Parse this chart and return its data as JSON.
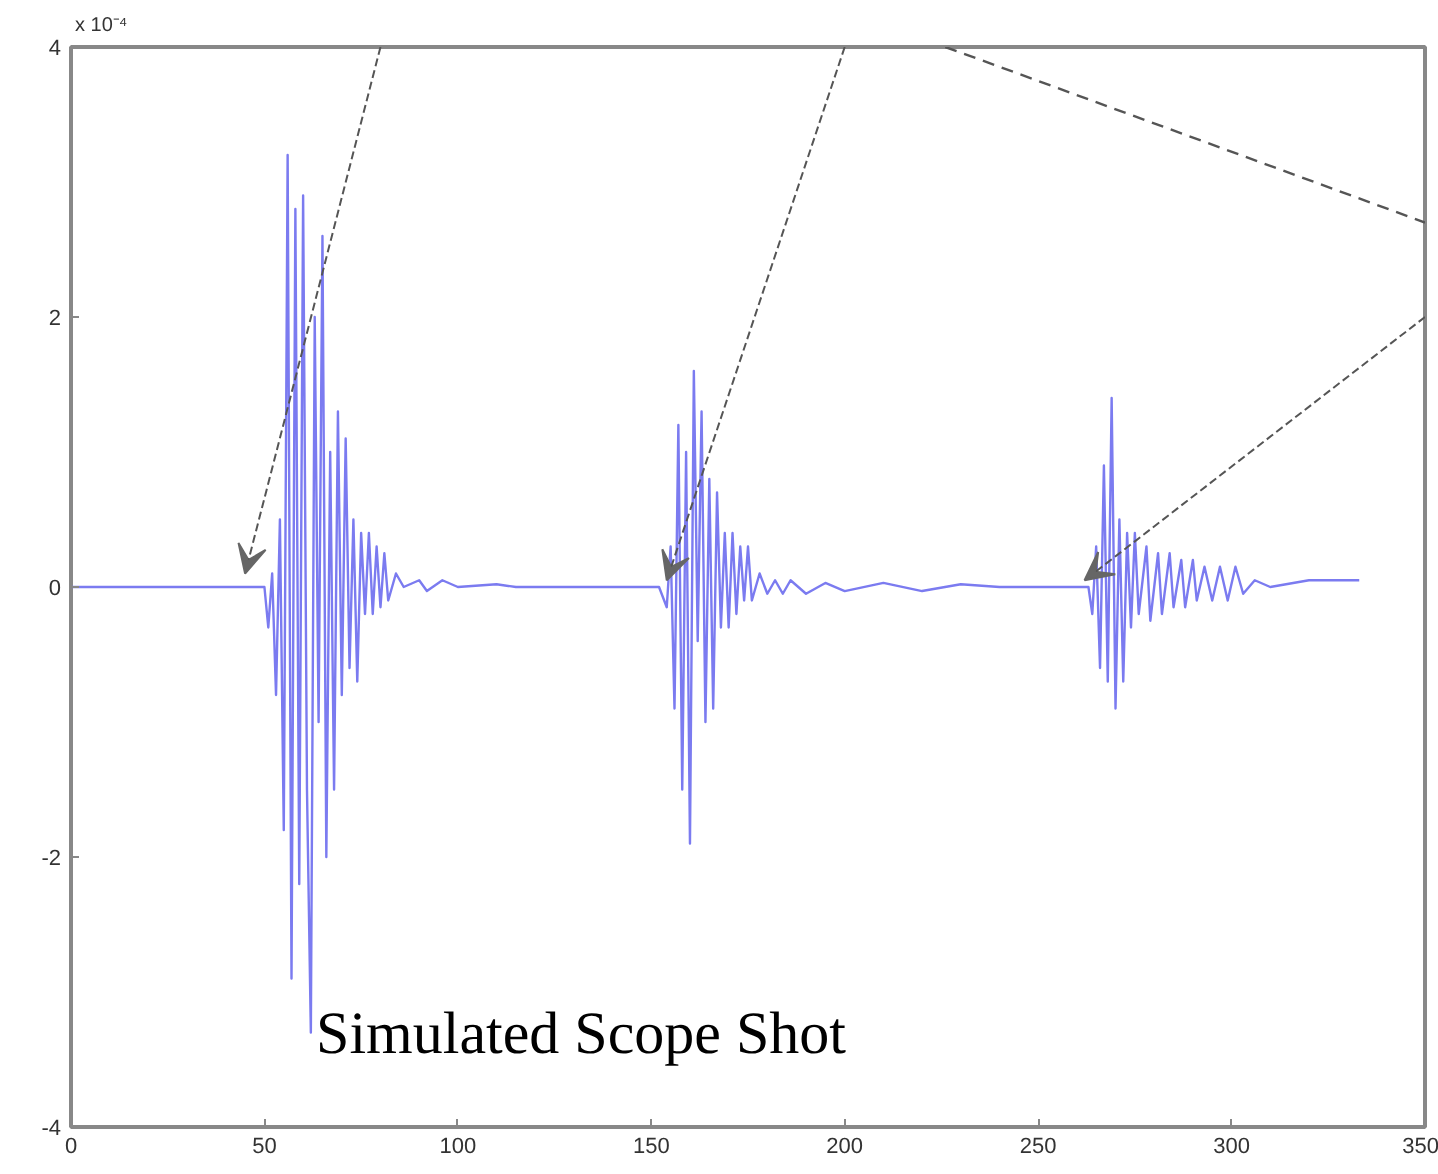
{
  "chart_data": {
    "type": "line",
    "annotations": [
      "x 10⁻⁴",
      "Simulated Scope Shot"
    ],
    "xlim": [
      0,
      350
    ],
    "xticks": [
      0,
      50,
      100,
      150,
      200,
      250,
      300,
      350
    ],
    "ylim": [
      -4,
      4
    ],
    "yticks": [
      -4,
      -2,
      0,
      2,
      4
    ],
    "grid": false,
    "marker": "none",
    "line_style": "solid",
    "series": [
      {
        "color": "#7b7bf0",
        "x": [
          0,
          48,
          50,
          51,
          52,
          53,
          54,
          55,
          56,
          57,
          58,
          59,
          60,
          61,
          62,
          63,
          64,
          65,
          66,
          67,
          68,
          69,
          70,
          71,
          72,
          73,
          74,
          75,
          76,
          77,
          78,
          79,
          80,
          81,
          82,
          84,
          86,
          90,
          92,
          96,
          100,
          110,
          115,
          150,
          152,
          154,
          155,
          156,
          157,
          158,
          159,
          160,
          161,
          162,
          163,
          164,
          165,
          166,
          167,
          168,
          169,
          170,
          171,
          172,
          173,
          174,
          175,
          176,
          178,
          180,
          182,
          184,
          186,
          190,
          195,
          200,
          210,
          220,
          230,
          240,
          260,
          263,
          264,
          265,
          266,
          267,
          268,
          269,
          270,
          271,
          272,
          273,
          274,
          275,
          276,
          278,
          279,
          281,
          282,
          284,
          285,
          287,
          288,
          290,
          291,
          293,
          295,
          297,
          299,
          301,
          303,
          306,
          310,
          320,
          333
        ],
        "values": [
          0,
          0,
          0,
          -0.3,
          0.1,
          -0.8,
          0.5,
          -1.8,
          3.2,
          -2.9,
          2.8,
          -2.2,
          2.9,
          -1.5,
          -3.3,
          2.0,
          -1.0,
          2.6,
          -2.0,
          1.0,
          -1.5,
          1.3,
          -0.8,
          1.1,
          -0.6,
          0.5,
          -0.7,
          0.4,
          -0.2,
          0.4,
          -0.2,
          0.3,
          -0.15,
          0.25,
          -0.1,
          0.1,
          0,
          0.05,
          -0.03,
          0.05,
          0,
          0.02,
          0,
          0,
          0,
          -0.15,
          0.3,
          -0.9,
          1.2,
          -1.5,
          1.0,
          -1.9,
          1.6,
          -0.4,
          1.3,
          -1.0,
          0.8,
          -0.9,
          0.7,
          -0.3,
          0.4,
          -0.3,
          0.4,
          -0.2,
          0.3,
          -0.1,
          0.3,
          -0.1,
          0.1,
          -0.05,
          0.05,
          -0.05,
          0.05,
          -0.05,
          0.03,
          -0.03,
          0.03,
          -0.03,
          0.02,
          0,
          0,
          0,
          -0.2,
          0.3,
          -0.6,
          0.9,
          -0.7,
          1.4,
          -0.9,
          0.5,
          -0.7,
          0.4,
          -0.3,
          0.4,
          -0.2,
          0.3,
          -0.25,
          0.25,
          -0.2,
          0.25,
          -0.15,
          0.2,
          -0.15,
          0.2,
          -0.1,
          0.15,
          -0.1,
          0.15,
          -0.1,
          0.15,
          -0.05,
          0.05,
          0,
          0.05,
          0.05
        ]
      },
      {
        "type": "line",
        "color": "#555555",
        "line_style": "dashed",
        "x": [
          226,
          350
        ],
        "values": [
          4,
          2.7
        ]
      }
    ]
  }
}
